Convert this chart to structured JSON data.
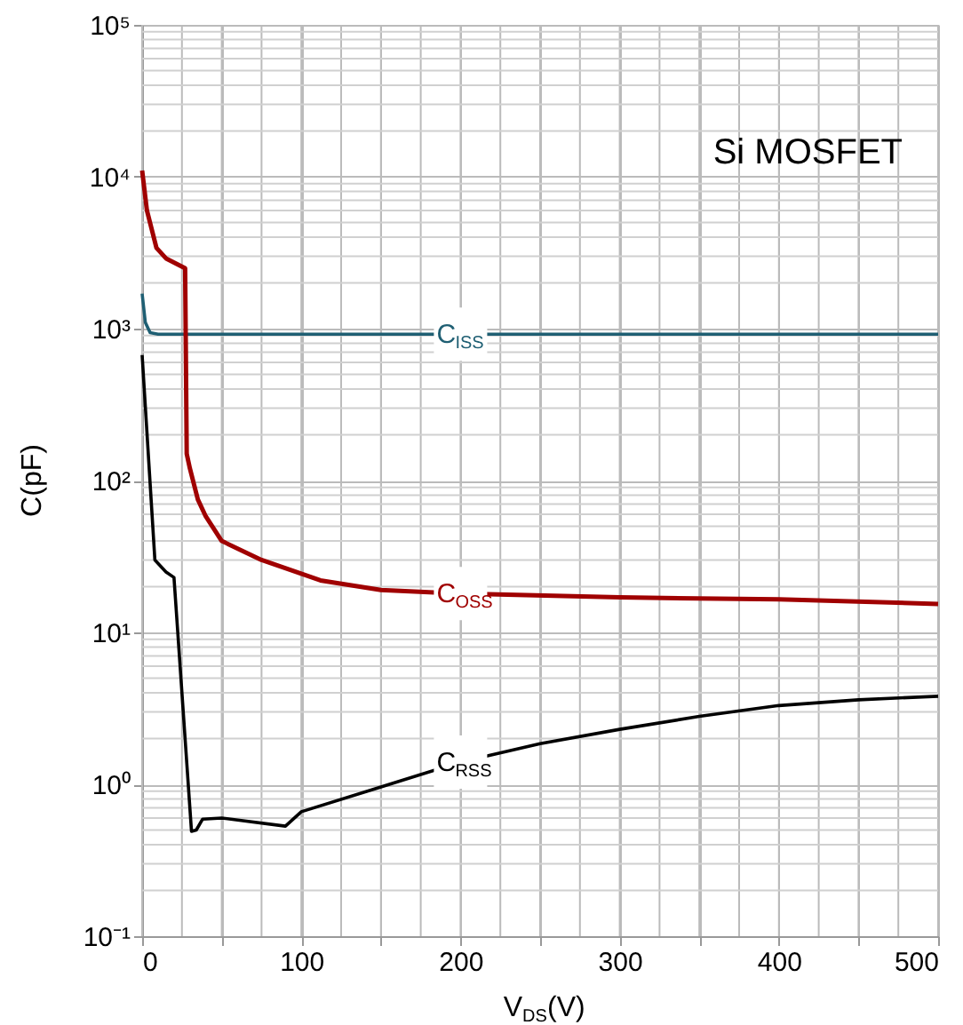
{
  "chart_data": {
    "type": "line",
    "title": "Si MOSFET",
    "xlabel": "V$_{DS}$(V)",
    "ylabel": "C(pF)",
    "log": "y",
    "grid": true,
    "line_style": "solid",
    "marker": "none",
    "xlim": [
      0,
      500
    ],
    "ylim": [
      0.1,
      100000
    ],
    "xticks": [
      0,
      {
        "value": 25,
        "label": null
      },
      {
        "value": 50,
        "label": null
      },
      {
        "value": 75,
        "label": null
      },
      100,
      {
        "value": 125,
        "label": null
      },
      {
        "value": 150,
        "label": null
      },
      {
        "value": 175,
        "label": null
      },
      200,
      {
        "value": 225,
        "label": null
      },
      {
        "value": 250,
        "label": null
      },
      {
        "value": 275,
        "label": null
      },
      300,
      {
        "value": 325,
        "label": null
      },
      {
        "value": 350,
        "label": null
      },
      {
        "value": 375,
        "label": null
      },
      400,
      {
        "value": 425,
        "label": null
      },
      {
        "value": 450,
        "label": null
      },
      {
        "value": 475,
        "label": null
      },
      500
    ],
    "yticks": [
      {
        "value": 0.1,
        "label": "10⁻¹"
      },
      {
        "value": 1,
        "label": "10⁰"
      },
      {
        "value": 10,
        "label": "10¹"
      },
      {
        "value": 100,
        "label": "10²"
      },
      {
        "value": 1000,
        "label": "10³"
      },
      {
        "value": 10000,
        "label": "10⁴"
      },
      {
        "value": 100000,
        "label": "10⁵"
      }
    ],
    "series": [
      {
        "name": "C$_{ISS}$",
        "color": "#1f5f73",
        "x": [
          0,
          2,
          5,
          10,
          50,
          100,
          200,
          300,
          400,
          500
        ],
        "values": [
          1700,
          1100,
          940,
          920,
          920,
          920,
          920,
          920,
          920,
          920
        ]
      },
      {
        "name": "C$_{OSS}$",
        "color": "#a00000",
        "x": [
          0,
          3,
          9,
          15,
          27,
          28,
          30,
          35,
          40,
          50,
          75,
          112,
          150,
          200,
          300,
          400,
          500
        ],
        "values": [
          11000,
          6000,
          3400,
          2900,
          2500,
          150,
          120,
          75,
          58,
          40,
          30,
          22,
          19,
          18,
          17,
          16.5,
          15.4
        ]
      },
      {
        "name": "C$_{RSS}$",
        "color": "#000000",
        "x": [
          0,
          8,
          15,
          20,
          31,
          34,
          38,
          50,
          90,
          100,
          150,
          200,
          250,
          300,
          350,
          400,
          450,
          500
        ],
        "values": [
          670,
          30,
          25,
          23,
          0.49,
          0.5,
          0.59,
          0.6,
          0.53,
          0.66,
          0.96,
          1.4,
          1.85,
          2.3,
          2.8,
          3.3,
          3.6,
          3.8
        ]
      }
    ]
  }
}
